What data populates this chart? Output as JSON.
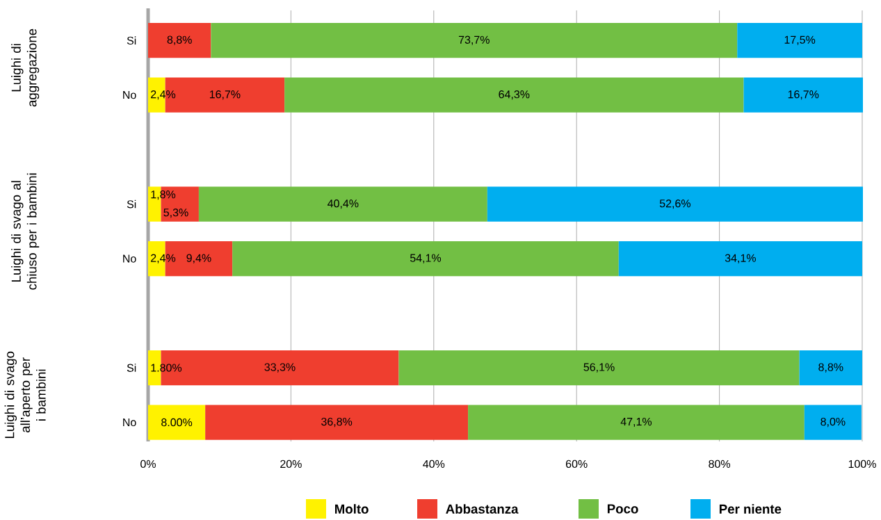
{
  "chart_data": {
    "type": "bar",
    "orientation": "horizontal",
    "stacked": true,
    "categories": [
      "Si",
      "No",
      null,
      "Si",
      "No",
      null,
      "Si",
      "No"
    ],
    "series": [
      {
        "name": "Molto",
        "color": "#fff200",
        "values": [
          null,
          2.4,
          null,
          1.8,
          2.4,
          null,
          1.8,
          8.0
        ],
        "value_labels": [
          null,
          "2,4%",
          null,
          "1,8%",
          "2,4%",
          null,
          "1.80%",
          "8.00%"
        ]
      },
      {
        "name": "Abbastanza",
        "color": "#ef3e2f",
        "values": [
          8.8,
          16.7,
          null,
          5.3,
          9.4,
          null,
          33.3,
          36.8
        ],
        "value_labels": [
          "8,8%",
          "16,7%",
          null,
          "5,3%",
          "9,4%",
          null,
          "33,3%",
          "36,8%"
        ]
      },
      {
        "name": "Poco",
        "color": "#72bf44",
        "values": [
          73.7,
          64.3,
          null,
          40.4,
          54.1,
          null,
          56.1,
          47.1
        ],
        "value_labels": [
          "73,7%",
          "64,3%",
          null,
          "40,4%",
          "54,1%",
          null,
          "56,1%",
          "47,1%"
        ]
      },
      {
        "name": "Per niente",
        "color": "#00aeef",
        "values": [
          17.5,
          16.7,
          null,
          52.6,
          34.1,
          null,
          8.8,
          8.0
        ],
        "value_labels": [
          "17,5%",
          "16,7%",
          null,
          "52,6%",
          "34,1%",
          null,
          "8,8%",
          "8,0%"
        ]
      }
    ],
    "xlim": [
      0,
      100.1
    ],
    "xticks": [
      {
        "value": 0,
        "label": "0%"
      },
      {
        "value": 20,
        "label": "20%"
      },
      {
        "value": 40,
        "label": "40%"
      },
      {
        "value": 60,
        "label": "60%"
      },
      {
        "value": 80,
        "label": "80%"
      },
      {
        "value": 100,
        "label": "100%"
      }
    ],
    "grid": "x",
    "legend": "bottom",
    "annotations": [
      "Luighi di aggregazione",
      "Luighi di svago al chiuso per i bambini",
      "Luighi di svago all’aperto per i bambini"
    ]
  }
}
